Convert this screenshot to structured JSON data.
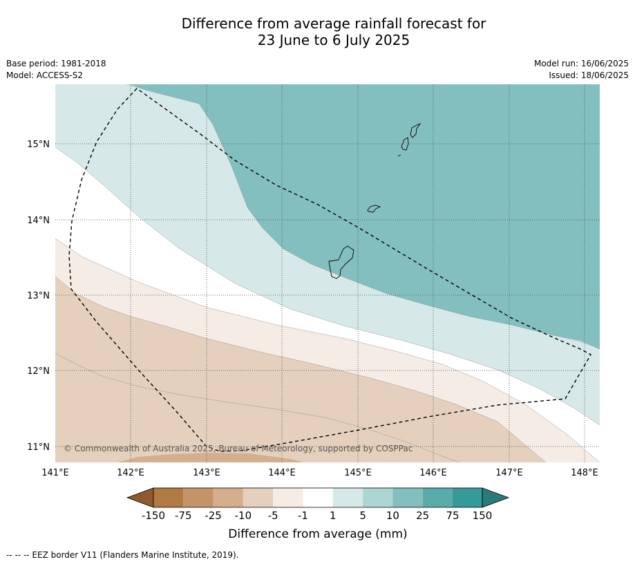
{
  "header": {
    "title_line1": "Difference from average rainfall forecast for",
    "title_line2": "23 June to 6 July 2025",
    "base_period": "Base period: 1981-2018",
    "model": "Model: ACCESS-S2",
    "model_run": "Model run: 16/06/2025",
    "issued": "Issued: 18/06/2025"
  },
  "map": {
    "lon_ticks": [
      "141°E",
      "142°E",
      "143°E",
      "144°E",
      "145°E",
      "146°E",
      "147°E",
      "148°E"
    ],
    "lat_ticks": [
      "15°N",
      "14°N",
      "13°N",
      "12°N",
      "11°N"
    ],
    "copyright": "© Commonwealth of Australia 2025, Bureau of Meteorology, supported by COSPPac"
  },
  "colorbar": {
    "tick_labels": [
      "-150",
      "-75",
      "-25",
      "-10",
      "-5",
      "-1",
      "1",
      "5",
      "10",
      "25",
      "75",
      "150"
    ],
    "colors": [
      "#8f5a2e",
      "#b17a42",
      "#c49468",
      "#d5ae8d",
      "#e4d0bd",
      "#f5ece6",
      "#ffffff",
      "#d6e9e8",
      "#acd5d4",
      "#84bfbf",
      "#5aacab",
      "#359a98",
      "#287b7a"
    ],
    "label": "Difference from average (mm)"
  },
  "footnote": "--  --  -- EEZ border V11 (Flanders Marine Institute, 2019)."
}
